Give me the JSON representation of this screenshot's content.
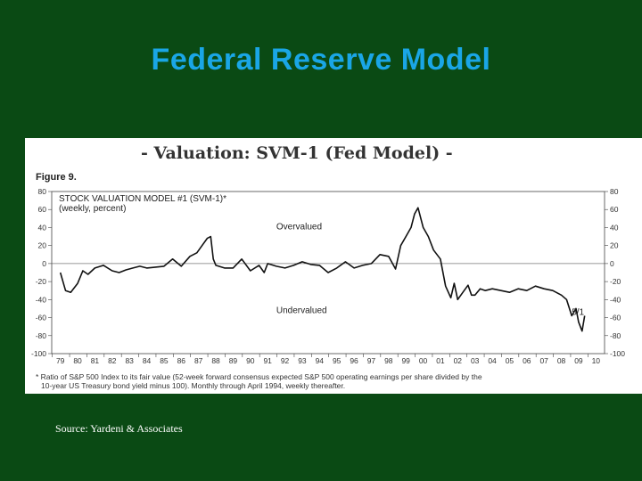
{
  "slide": {
    "title": "Federal Reserve Model",
    "source": "Source: Yardeni & Associates"
  },
  "panel": {
    "heading": "- Valuation: SVM-1 (Fed Model) -",
    "figure_label": "Figure 9.",
    "note_line1": "* Ratio of S&P 500 Index to its fair value (52-week forward consensus expected S&P 500 operating earnings per share divided by the",
    "note_line2": "10-year US Treasury bond yield minus 100). Monthly through April 1994, weekly thereafter."
  },
  "chart_data": {
    "type": "line",
    "title": "STOCK VALUATION MODEL #1 (SVM-1)*",
    "subtitle": "(weekly, percent)",
    "ylim": [
      -100,
      80
    ],
    "yticks": [
      80,
      60,
      40,
      20,
      0,
      -20,
      -40,
      -60,
      -80,
      -100
    ],
    "xlim": [
      1978.5,
      2010.5
    ],
    "xticks": [
      "79",
      "80",
      "81",
      "82",
      "83",
      "84",
      "85",
      "86",
      "87",
      "88",
      "89",
      "90",
      "91",
      "92",
      "93",
      "94",
      "95",
      "96",
      "97",
      "98",
      "99",
      "00",
      "01",
      "02",
      "03",
      "04",
      "05",
      "06",
      "07",
      "08",
      "09",
      "10"
    ],
    "reference_line": 0,
    "annotations": [
      {
        "text": "Overvalued",
        "x": 1991.5,
        "y": 38
      },
      {
        "text": "Undervalued",
        "x": 1991.5,
        "y": -55
      },
      {
        "text": "5/1",
        "x": 2008.6,
        "y": -57
      }
    ],
    "series": [
      {
        "name": "SVM-1",
        "x": [
          1979.0,
          1979.3,
          1979.6,
          1980.0,
          1980.3,
          1980.6,
          1981.0,
          1981.5,
          1982.0,
          1982.4,
          1982.8,
          1983.2,
          1983.6,
          1984.0,
          1984.5,
          1985.0,
          1985.5,
          1986.0,
          1986.5,
          1986.9,
          1987.2,
          1987.5,
          1987.7,
          1987.85,
          1988.0,
          1988.5,
          1989.0,
          1989.5,
          1990.0,
          1990.5,
          1990.8,
          1991.0,
          1991.5,
          1992.0,
          1992.5,
          1993.0,
          1993.5,
          1994.0,
          1994.5,
          1995.0,
          1995.5,
          1996.0,
          1996.5,
          1997.0,
          1997.5,
          1998.0,
          1998.4,
          1998.7,
          1999.0,
          1999.3,
          1999.5,
          1999.7,
          2000.0,
          2000.3,
          2000.6,
          2001.0,
          2001.3,
          2001.6,
          2001.8,
          2002.0,
          2002.3,
          2002.6,
          2002.8,
          2003.0,
          2003.3,
          2003.6,
          2004.0,
          2004.5,
          2005.0,
          2005.5,
          2006.0,
          2006.5,
          2007.0,
          2007.5,
          2008.0,
          2008.3,
          2008.6,
          2008.85,
          2009.0,
          2009.2,
          2009.35
        ],
        "values": [
          -10,
          -30,
          -32,
          -22,
          -8,
          -12,
          -5,
          -2,
          -8,
          -10,
          -7,
          -5,
          -3,
          -5,
          -4,
          -3,
          5,
          -3,
          8,
          12,
          20,
          28,
          30,
          5,
          -2,
          -5,
          -5,
          5,
          -8,
          -2,
          -10,
          0,
          -3,
          -5,
          -2,
          2,
          -1,
          -2,
          -10,
          -5,
          2,
          -5,
          -2,
          0,
          10,
          8,
          -6,
          20,
          30,
          40,
          55,
          62,
          40,
          30,
          15,
          5,
          -25,
          -38,
          -22,
          -40,
          -32,
          -24,
          -35,
          -35,
          -28,
          -30,
          -28,
          -30,
          -32,
          -28,
          -30,
          -25,
          -28,
          -30,
          -35,
          -40,
          -58,
          -50,
          -65,
          -75,
          -58
        ]
      }
    ]
  }
}
